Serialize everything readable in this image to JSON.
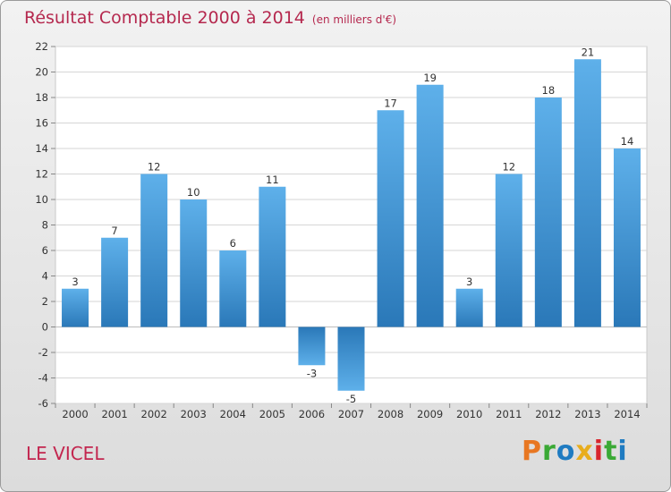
{
  "title": "Résultat Comptable 2000 à 2014",
  "subtitle": "(en milliers d'€)",
  "commune": "LE VICEL",
  "brand": {
    "letters": [
      "P",
      "r",
      "o",
      "x",
      "i",
      "t",
      "i"
    ],
    "colors": [
      "#e87722",
      "#3aa935",
      "#1f7bc1",
      "#e8ad1d",
      "#d8262e",
      "#3aa935",
      "#1f7bc1"
    ]
  },
  "chart_data": {
    "type": "bar",
    "title": "Résultat Comptable 2000 à 2014",
    "xlabel": "",
    "ylabel": "",
    "categories": [
      "2000",
      "2001",
      "2002",
      "2003",
      "2004",
      "2005",
      "2006",
      "2007",
      "2008",
      "2009",
      "2010",
      "2011",
      "2012",
      "2013",
      "2014"
    ],
    "values": [
      3,
      7,
      12,
      10,
      6,
      11,
      -3,
      -5,
      17,
      19,
      3,
      12,
      18,
      21,
      14
    ],
    "ylim": [
      -6,
      22
    ],
    "yticks": [
      -6,
      -4,
      -2,
      0,
      2,
      4,
      6,
      8,
      10,
      12,
      14,
      16,
      18,
      20,
      22
    ],
    "grid": true,
    "bar_color": "#3d8fd0"
  }
}
